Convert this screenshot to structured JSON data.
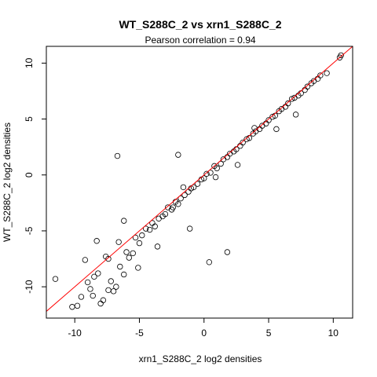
{
  "chart_data": {
    "type": "scatter",
    "title": "WT_S288C_2 vs xrn1_S288C_2",
    "subtitle": "Pearson correlation =  0.94",
    "xlabel": "xrn1_S288C_2 log2 densities",
    "ylabel": "WT_S288C_2 log2 densities",
    "xlim": [
      -12.2,
      11.5
    ],
    "ylim": [
      -12.8,
      11.5
    ],
    "xticks": [
      -10,
      -5,
      0,
      5,
      10
    ],
    "yticks": [
      -10,
      -5,
      0,
      5,
      10
    ],
    "point_style": "open-circle",
    "point_color": "#000000",
    "fit_line": {
      "color": "#ff0000",
      "slope": 1.0,
      "intercept": 0.0
    },
    "series": [
      {
        "x": [
          -11.5,
          -10.2,
          -9.8,
          -9.5,
          -9.0,
          -8.8,
          -8.6,
          -8.5,
          -8.2,
          -8.0,
          -7.8,
          -7.6,
          -7.4,
          -7.2,
          -7.0,
          -6.8,
          -6.6,
          -6.5,
          -6.2,
          -6.0,
          -5.8,
          -5.5,
          -5.3,
          -5.0,
          -4.8,
          -4.5,
          -4.2,
          -4.0,
          -3.8,
          -3.5,
          -3.2,
          -3.0,
          -2.8,
          -2.5,
          -2.2,
          -2.0,
          -1.8,
          -1.5,
          -1.2,
          -1.0,
          -0.8,
          -0.5,
          -0.2,
          0.0,
          0.2,
          0.5,
          0.8,
          1.0,
          1.3,
          1.5,
          1.8,
          2.0,
          2.3,
          2.5,
          2.8,
          3.0,
          3.3,
          3.5,
          3.8,
          4.0,
          4.3,
          4.5,
          4.8,
          5.0,
          5.3,
          5.5,
          5.8,
          6.0,
          6.3,
          6.5,
          6.8,
          7.0,
          7.3,
          7.5,
          7.8,
          8.0,
          8.3,
          8.5,
          8.8,
          9.0,
          9.5,
          10.5,
          10.6,
          -6.7,
          -2.0,
          1.8,
          0.4,
          -1.6,
          -9.2,
          -8.3,
          -7.4,
          -6.2,
          -5.1,
          -3.6,
          -2.4,
          -1.1,
          0.9,
          2.6,
          3.9,
          5.6,
          7.1
        ],
        "y": [
          -9.3,
          -11.8,
          -11.7,
          -10.9,
          -9.6,
          -10.2,
          -10.8,
          -9.1,
          -8.8,
          -11.5,
          -11.2,
          -7.3,
          -7.5,
          -9.5,
          -10.4,
          -10.0,
          -6.0,
          -8.2,
          -8.9,
          -6.9,
          -7.4,
          -7.0,
          -5.6,
          -6.1,
          -5.4,
          -4.8,
          -4.9,
          -4.3,
          -4.6,
          -3.9,
          -3.7,
          -3.5,
          -2.9,
          -3.1,
          -2.4,
          -2.6,
          -2.1,
          -1.8,
          -1.5,
          -1.2,
          -1.1,
          -0.8,
          -0.4,
          -0.3,
          0.1,
          0.2,
          0.8,
          0.6,
          1.0,
          1.4,
          1.6,
          1.9,
          2.1,
          2.3,
          2.6,
          2.9,
          3.2,
          3.3,
          3.7,
          3.9,
          4.1,
          4.4,
          4.6,
          4.9,
          5.2,
          5.3,
          5.7,
          5.9,
          6.1,
          6.4,
          6.8,
          6.9,
          7.1,
          7.3,
          7.6,
          7.9,
          8.2,
          8.4,
          8.6,
          8.9,
          9.1,
          10.5,
          10.7,
          1.7,
          1.8,
          -6.9,
          -7.8,
          -1.1,
          -7.6,
          -5.9,
          -10.3,
          -4.1,
          -8.3,
          -6.4,
          -2.9,
          -4.8,
          -0.2,
          0.9,
          4.2,
          4.1,
          5.4
        ]
      }
    ]
  }
}
